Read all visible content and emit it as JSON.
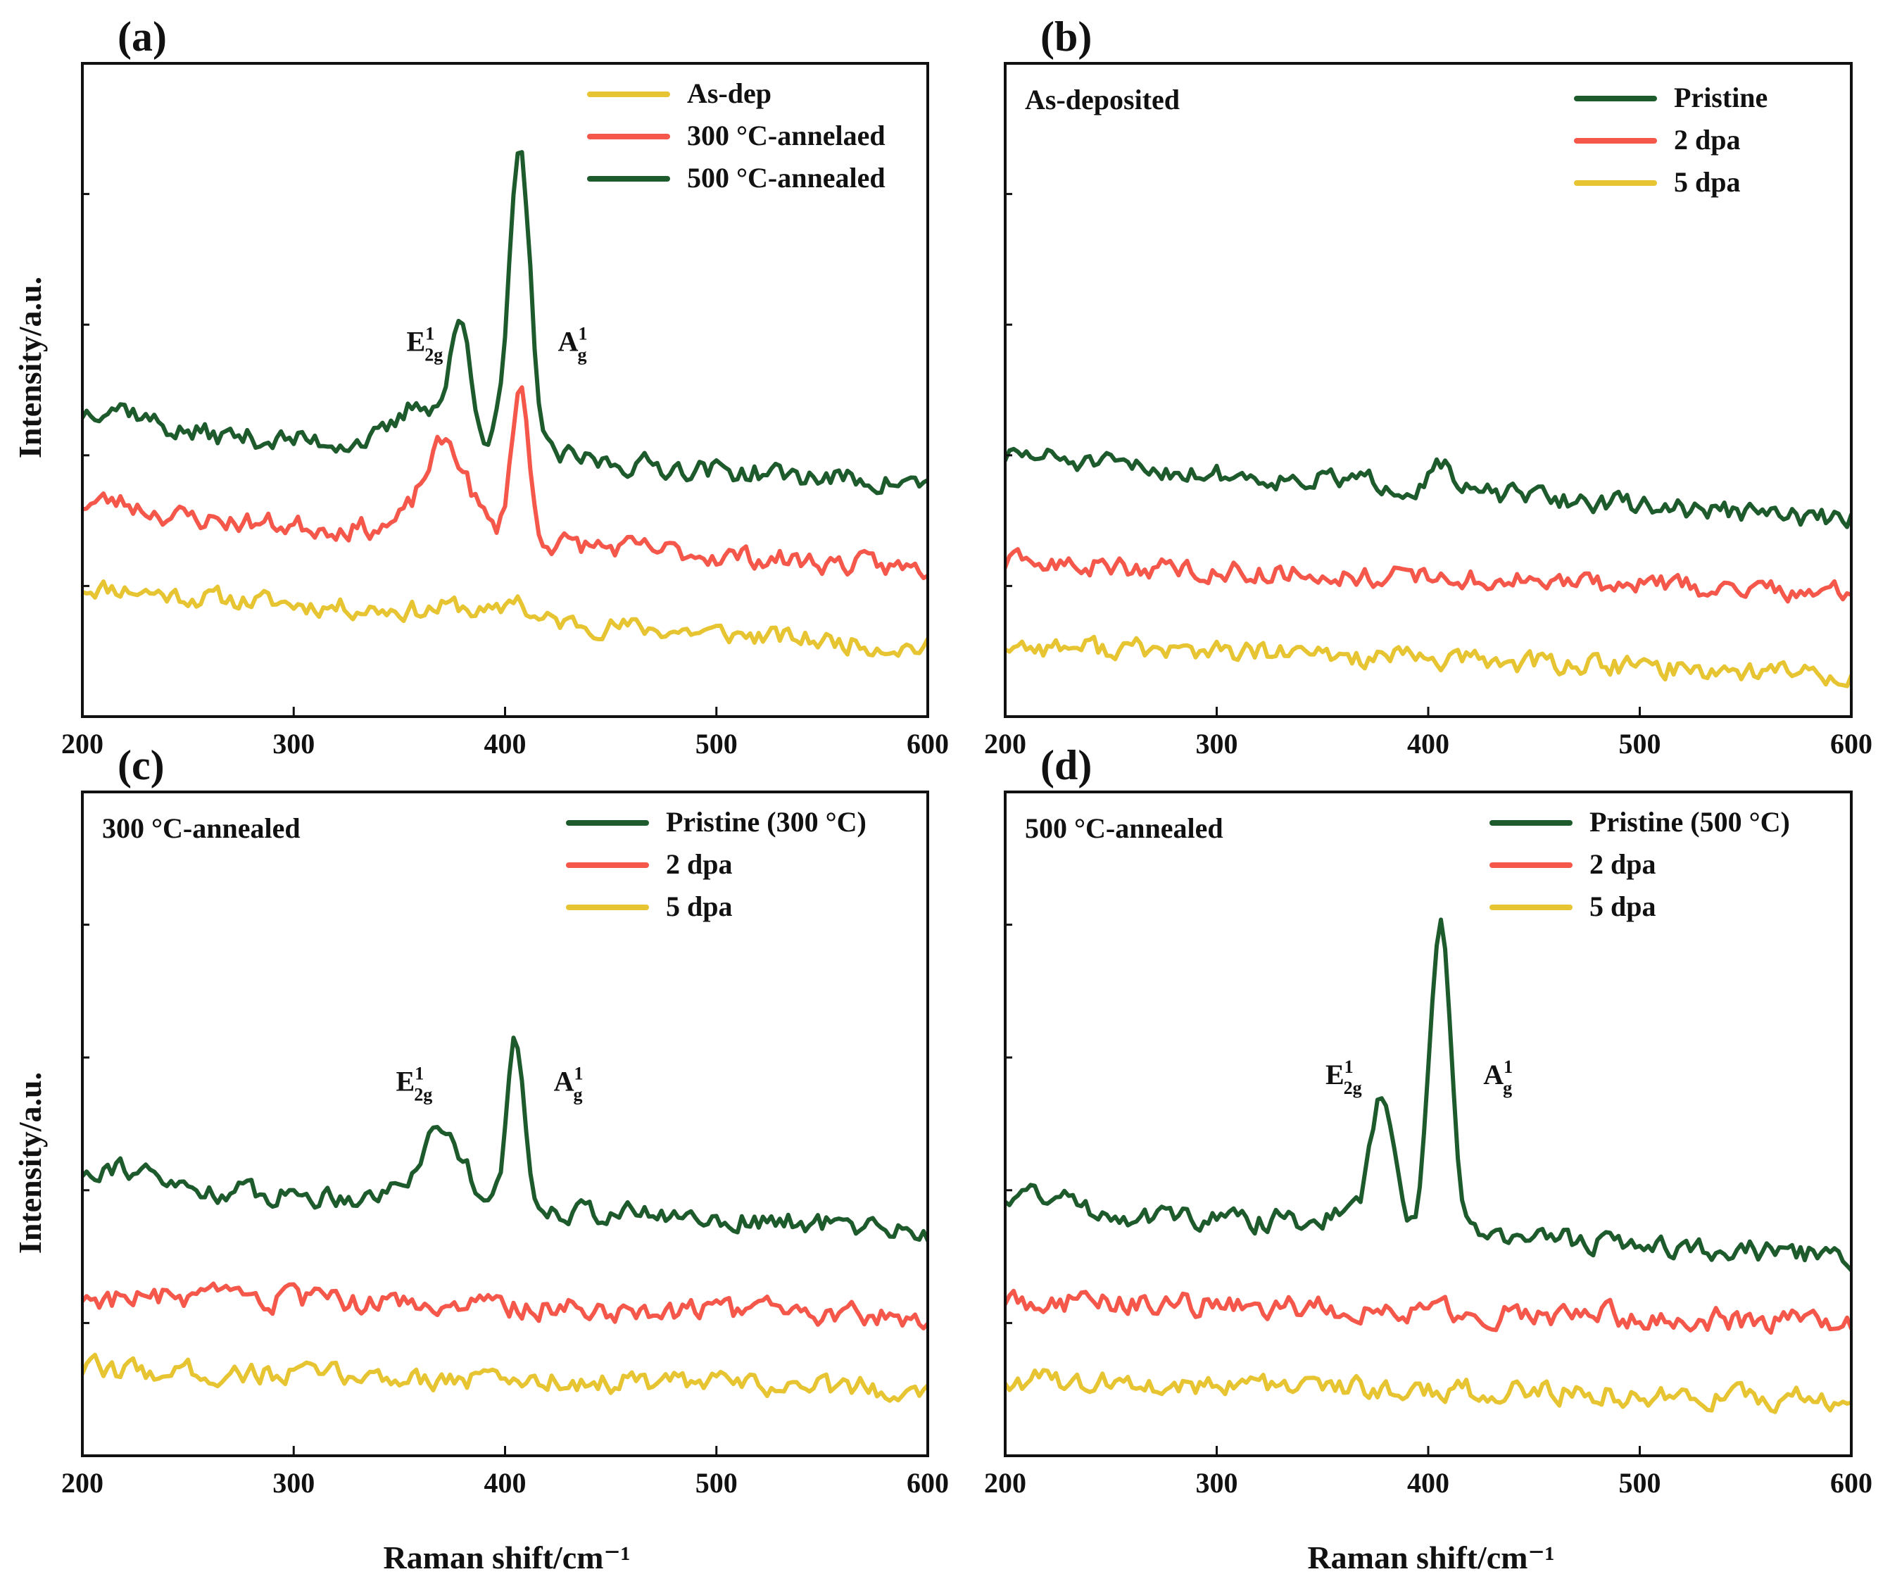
{
  "figure": {
    "ylabel": "Intensity/a.u.",
    "xlabel": "Raman shift/cm⁻¹"
  },
  "colors": {
    "green": "#1e5b2c",
    "red": "#f5574a",
    "yellow": "#e7c532"
  },
  "chart_data": [
    {
      "type": "line",
      "panel": "(a)",
      "title": "",
      "xlim": [
        200,
        600
      ],
      "xticks": [
        200,
        300,
        400,
        500,
        600
      ],
      "ylim": [
        0,
        10
      ],
      "ylabel": "Intensity/a.u.",
      "xlabel": "",
      "legend_position": "top-right",
      "peak_labels": [
        {
          "main": "E",
          "sub": "2g",
          "sup": "1",
          "x": 362,
          "y": 5.6
        },
        {
          "main": "A",
          "sub": "g",
          "sup": "1",
          "x": 432,
          "y": 5.6
        }
      ],
      "series": [
        {
          "name": "As-dep",
          "color": "yellow",
          "base": 1.95,
          "slope": -0.9,
          "noise": 0.28,
          "seed": 11,
          "bump": 0.15,
          "peaks": [
            {
              "x": 405,
              "h": 0.35,
              "w": 4
            },
            {
              "x": 378,
              "h": 0.1,
              "w": 8
            }
          ]
        },
        {
          "name": "300 °C-annelaed",
          "color": "red",
          "base": 3.15,
          "slope": -0.9,
          "noise": 0.3,
          "seed": 23,
          "bump": 0.5,
          "peaks": [
            {
              "x": 407,
              "h": 2.35,
              "w": 4
            },
            {
              "x": 372,
              "h": 1.3,
              "w": 10
            }
          ]
        },
        {
          "name": "500 °C-annealed",
          "color": "green",
          "base": 4.45,
          "slope": -0.9,
          "noise": 0.3,
          "seed": 37,
          "bump": 1.0,
          "peaks": [
            {
              "x": 407,
              "h": 4.5,
              "w": 5
            },
            {
              "x": 379,
              "h": 1.7,
              "w": 5
            },
            {
              "x": 360,
              "h": 0.5,
              "w": 8
            }
          ]
        }
      ]
    },
    {
      "type": "line",
      "panel": "(b)",
      "title": "As-deposited",
      "xlim": [
        200,
        600
      ],
      "xticks": [
        200,
        300,
        400,
        500,
        600
      ],
      "ylim": [
        0,
        10
      ],
      "ylabel": "",
      "xlabel": "",
      "legend_position": "top-right",
      "peak_labels": [],
      "series": [
        {
          "name": "Pristine",
          "color": "green",
          "base": 3.95,
          "slope": -0.95,
          "noise": 0.28,
          "seed": 51,
          "bump": 0.2,
          "peaks": [
            {
              "x": 405,
              "h": 0.5,
              "w": 4
            }
          ]
        },
        {
          "name": "2 dpa",
          "color": "red",
          "base": 2.35,
          "slope": -0.45,
          "noise": 0.28,
          "seed": 63,
          "bump": 0.0,
          "peaks": []
        },
        {
          "name": "5 dpa",
          "color": "yellow",
          "base": 1.1,
          "slope": -0.45,
          "noise": 0.3,
          "seed": 77,
          "bump": 0.0,
          "peaks": []
        }
      ]
    },
    {
      "type": "line",
      "panel": "(c)",
      "title": "300 °C-annealed",
      "xlim": [
        200,
        600
      ],
      "xticks": [
        200,
        300,
        400,
        500,
        600
      ],
      "ylim": [
        0,
        10
      ],
      "ylabel": "Intensity/a.u.",
      "xlabel": "Raman shift/cm⁻¹",
      "legend_position": "top-right",
      "peak_labels": [
        {
          "main": "E",
          "sub": "2g",
          "sup": "1",
          "x": 357,
          "y": 5.5
        },
        {
          "main": "A",
          "sub": "g",
          "sup": "1",
          "x": 430,
          "y": 5.5
        }
      ],
      "series": [
        {
          "name": "Pristine (300 °C)",
          "color": "green",
          "base": 4.1,
          "slope": -0.7,
          "noise": 0.3,
          "seed": 91,
          "bump": 0.9,
          "peaks": [
            {
              "x": 405,
              "h": 2.35,
              "w": 4
            },
            {
              "x": 370,
              "h": 0.9,
              "w": 9
            }
          ]
        },
        {
          "name": "2 dpa",
          "color": "red",
          "base": 2.4,
          "slope": -0.3,
          "noise": 0.32,
          "seed": 103,
          "bump": 0.0,
          "peaks": []
        },
        {
          "name": "5 dpa",
          "color": "yellow",
          "base": 1.3,
          "slope": -0.3,
          "noise": 0.3,
          "seed": 117,
          "bump": 0.0,
          "peaks": []
        }
      ]
    },
    {
      "type": "line",
      "panel": "(d)",
      "title": "500 °C-annealed",
      "xlim": [
        200,
        600
      ],
      "xticks": [
        200,
        300,
        400,
        500,
        600
      ],
      "ylim": [
        0,
        10
      ],
      "ylabel": "",
      "xlabel": "Raman shift/cm⁻¹",
      "legend_position": "top-right",
      "peak_labels": [
        {
          "main": "E",
          "sub": "2g",
          "sup": "1",
          "x": 360,
          "y": 5.6
        },
        {
          "main": "A",
          "sub": "g",
          "sup": "1",
          "x": 433,
          "y": 5.6
        }
      ],
      "series": [
        {
          "name": "Pristine (500 °C)",
          "color": "green",
          "base": 3.75,
          "slope": -0.75,
          "noise": 0.3,
          "seed": 131,
          "bump": 0.7,
          "peaks": [
            {
              "x": 406,
              "h": 4.6,
              "w": 5
            },
            {
              "x": 378,
              "h": 1.9,
              "w": 5
            }
          ]
        },
        {
          "name": "2 dpa",
          "color": "red",
          "base": 2.35,
          "slope": -0.35,
          "noise": 0.32,
          "seed": 149,
          "bump": 0.0,
          "peaks": []
        },
        {
          "name": "5 dpa",
          "color": "yellow",
          "base": 1.15,
          "slope": -0.3,
          "noise": 0.3,
          "seed": 163,
          "bump": 0.0,
          "peaks": []
        }
      ]
    }
  ]
}
